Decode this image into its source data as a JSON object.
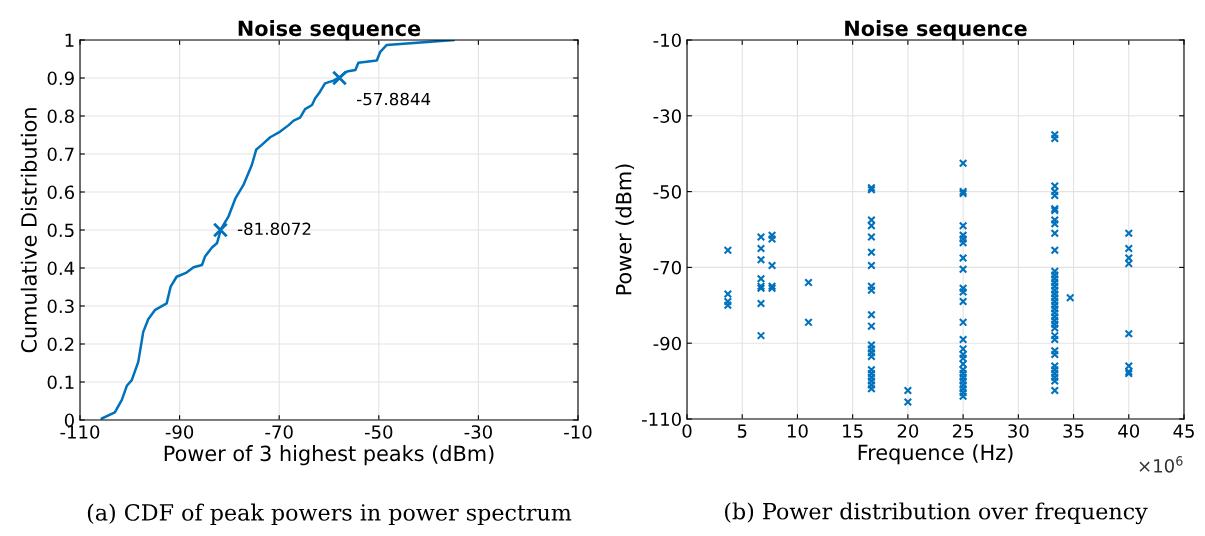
{
  "chart_data": [
    {
      "type": "line",
      "title": "Noise sequence",
      "xlabel": "Power of 3 highest peaks (dBm)",
      "ylabel": "Cumulative Distribution",
      "xlim": [
        -110,
        -10
      ],
      "xticks": [
        -110,
        -90,
        -70,
        -50,
        -30,
        -10
      ],
      "ylim": [
        0,
        1
      ],
      "yticks": [
        0,
        0.1,
        0.2,
        0.3,
        0.4,
        0.5,
        0.6,
        0.7,
        0.8,
        0.9,
        1
      ],
      "grid": true,
      "marker": "none",
      "line_style": "solid",
      "series": [
        {
          "color": "#0072bd",
          "x": [
            -105.6,
            -103.0,
            -101.6,
            -100.6,
            -99.6,
            -98.3,
            -97.3,
            -96.3,
            -94.9,
            -92.6,
            -91.8,
            -90.6,
            -88.6,
            -87.2,
            -85.5,
            -84.9,
            -83.5,
            -82.5,
            -81.7,
            -80.2,
            -78.8,
            -77.2,
            -75.5,
            -74.6,
            -73.5,
            -71.8,
            -69.8,
            -68.1,
            -67.1,
            -65.8,
            -64.8,
            -63.4,
            -62.8,
            -61.8,
            -60.8,
            -59.1,
            -57.9,
            -56.4,
            -54.7,
            -54.1,
            -50.4,
            -49.7,
            -48.4,
            -35.0
          ],
          "values": [
            0.004,
            0.02,
            0.053,
            0.09,
            0.105,
            0.153,
            0.232,
            0.265,
            0.29,
            0.307,
            0.351,
            0.377,
            0.388,
            0.402,
            0.408,
            0.43,
            0.454,
            0.465,
            0.502,
            0.535,
            0.583,
            0.618,
            0.671,
            0.712,
            0.724,
            0.744,
            0.759,
            0.776,
            0.788,
            0.796,
            0.818,
            0.829,
            0.846,
            0.864,
            0.886,
            0.893,
            0.902,
            0.917,
            0.921,
            0.94,
            0.946,
            0.969,
            0.987,
            1.0
          ]
        }
      ],
      "annotations": [
        {
          "text": "-81.8072",
          "x": -81.8072,
          "y": 0.5
        },
        {
          "text": "-57.8844",
          "x": -57.8844,
          "y": 0.9
        },
        "(a) CDF of peak powers in power spectrum"
      ]
    },
    {
      "type": "scatter",
      "title": "Noise sequence",
      "xlabel": "Frequence (Hz)",
      "ylabel": "Power (dBm)",
      "xlim": [
        0,
        45
      ],
      "xticks": [
        0,
        5,
        10,
        15,
        20,
        25,
        30,
        35,
        40,
        45
      ],
      "ylim": [
        -110,
        -10
      ],
      "yticks": [
        -110,
        -90,
        -70,
        -50,
        -30,
        -10
      ],
      "grid": true,
      "marker": "cross",
      "series": [
        {
          "color": "#0072bd",
          "x": [
            3.7,
            3.7,
            3.7,
            3.7,
            6.7,
            6.7,
            6.7,
            6.7,
            6.7,
            6.7,
            6.7,
            6.7,
            7.7,
            7.7,
            7.7,
            7.7,
            7.7,
            11,
            11,
            16.7,
            16.7,
            16.7,
            16.7,
            16.7,
            16.7,
            16.7,
            16.7,
            16.7,
            16.7,
            16.7,
            16.7,
            16.7,
            16.7,
            16.7,
            16.7,
            16.7,
            16.7,
            16.7,
            16.7,
            16.7,
            20,
            20,
            25,
            25,
            25,
            25,
            25,
            25,
            25,
            25,
            25,
            25,
            25,
            25,
            25,
            25,
            25,
            25,
            25,
            25,
            25,
            25,
            25,
            25,
            25,
            25,
            25,
            25,
            33.3,
            33.3,
            33.3,
            33.3,
            33.3,
            33.3,
            33.3,
            33.3,
            33.3,
            33.3,
            33.3,
            33.3,
            33.3,
            33.3,
            33.3,
            33.3,
            33.3,
            33.3,
            33.3,
            33.3,
            33.3,
            33.3,
            33.3,
            33.3,
            33.3,
            33.3,
            33.3,
            33.3,
            33.3,
            33.3,
            33.3,
            33.3,
            33.3,
            33.3,
            33.3,
            33.3,
            33.3,
            34.7,
            40,
            40,
            40,
            40,
            40,
            40,
            40,
            40
          ],
          "values": [
            -65.5,
            -77,
            -79,
            -80,
            -62,
            -65,
            -68,
            -73,
            -75,
            -75.5,
            -79.5,
            -88,
            -61.5,
            -62.5,
            -69.5,
            -75,
            -75.5,
            -74,
            -84.5,
            -49,
            -49.5,
            -57.5,
            -59,
            -62,
            -66,
            -69.5,
            -75,
            -76,
            -82.5,
            -85.5,
            -90.5,
            -91.5,
            -92.5,
            -93.5,
            -97,
            -98,
            -99,
            -100,
            -101,
            -102,
            -102.5,
            -105.5,
            -42.5,
            -50,
            -50.5,
            -59,
            -61.5,
            -62.5,
            -63.5,
            -67.5,
            -70.5,
            -75.5,
            -76.5,
            -79,
            -84.5,
            -89,
            -91.5,
            -93,
            -94,
            -95.5,
            -97,
            -98,
            -99,
            -100,
            -101,
            -102,
            -103,
            -104,
            -35,
            -36,
            -48.5,
            -50,
            -51,
            -54.5,
            -55,
            -57.5,
            -58.5,
            -61,
            -65.5,
            -71,
            -72,
            -73,
            -74,
            -75,
            -76,
            -77,
            -78,
            -79,
            -80,
            -81,
            -82,
            -83,
            -84,
            -85,
            -86,
            -88,
            -89,
            -92,
            -93,
            -96,
            -97,
            -98,
            -99,
            -100,
            -102.5,
            -78,
            -61,
            -65,
            -67.5,
            -69,
            -87.5,
            -96,
            -97.5,
            -98
          ]
        }
      ],
      "annotations": [
        "×10$^{6}$",
        "(b) Power distribution over frequency"
      ]
    }
  ]
}
